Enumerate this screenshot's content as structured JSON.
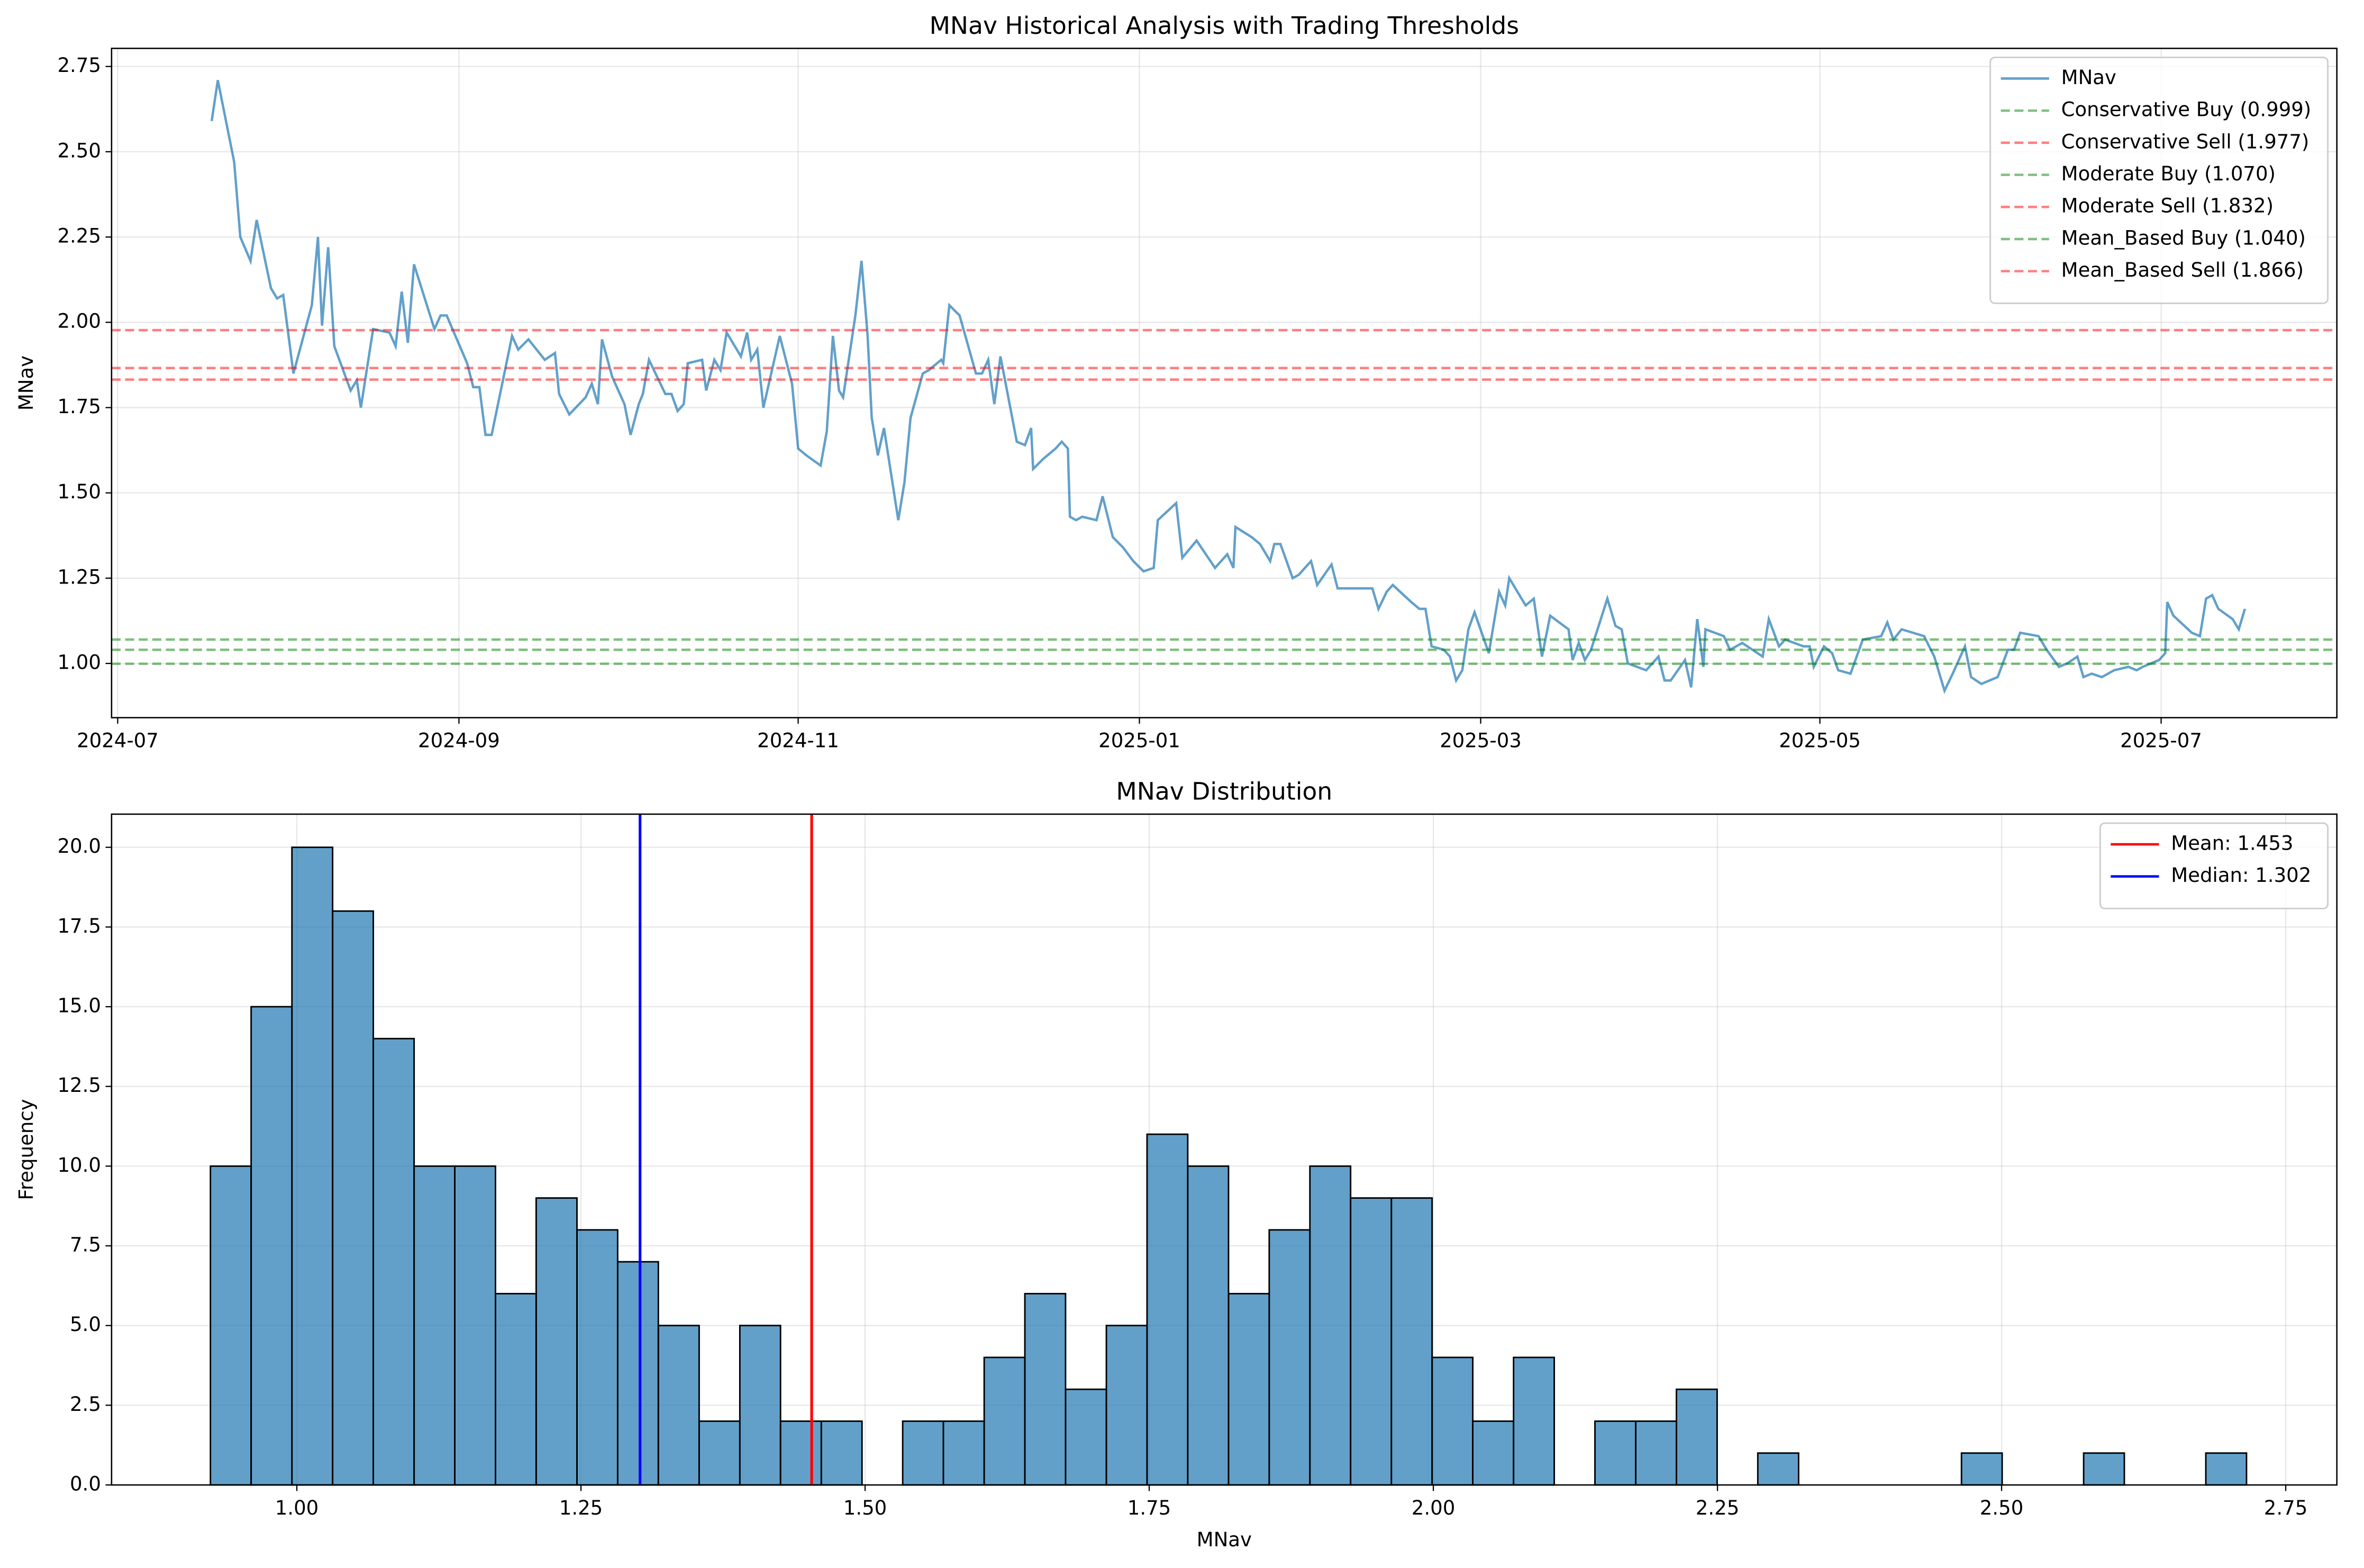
{
  "chart_data": [
    {
      "type": "line",
      "title": "MNav Historical Analysis with Trading Thresholds",
      "ylabel": "MNav",
      "x": [
        2024.546,
        2024.549,
        2024.557,
        2024.56,
        2024.565,
        2024.568,
        2024.575,
        2024.578,
        2024.581,
        2024.586,
        2024.595,
        2024.598,
        2024.6,
        2024.603,
        2024.606,
        2024.614,
        2024.617,
        2024.619,
        2024.625,
        2024.633,
        2024.636,
        2024.639,
        2024.642,
        2024.645,
        2024.655,
        2024.658,
        2024.661,
        2024.671,
        2024.674,
        2024.677,
        2024.68,
        2024.683,
        2024.693,
        2024.696,
        2024.701,
        2024.709,
        2024.714,
        2024.716,
        2024.721,
        2024.729,
        2024.732,
        2024.735,
        2024.737,
        2024.742,
        2024.748,
        2024.751,
        2024.755,
        2024.757,
        2024.76,
        2024.764,
        2024.768,
        2024.771,
        2024.774,
        2024.777,
        2024.779,
        2024.786,
        2024.788,
        2024.792,
        2024.795,
        2024.798,
        2024.805,
        2024.808,
        2024.81,
        2024.813,
        2024.816,
        2024.824,
        2024.827,
        2024.83,
        2024.833,
        2024.837,
        2024.844,
        2024.847,
        2024.85,
        2024.853,
        2024.855,
        2024.861,
        2024.864,
        2024.867,
        2024.869,
        2024.872,
        2024.875,
        2024.882,
        2024.885,
        2024.888,
        2024.894,
        2024.897,
        2024.903,
        2024.904,
        2024.907,
        2024.912,
        2024.92,
        2024.923,
        2024.926,
        2024.929,
        2024.932,
        2024.94,
        2024.944,
        2024.947,
        2024.948,
        2024.953,
        2024.959,
        2024.962,
        2024.965,
        2024.966,
        2024.969,
        2024.972,
        2024.979,
        2024.982,
        2024.987,
        2024.992,
        2024.997,
        2025.002,
        2025.007,
        2025.009,
        2025.018,
        2025.021,
        2025.028,
        2025.037,
        2025.04,
        2025.043,
        2025.046,
        2025.047,
        2025.055,
        2025.059,
        2025.064,
        2025.066,
        2025.069,
        2025.075,
        2025.078,
        2025.084,
        2025.087,
        2025.094,
        2025.097,
        2025.103,
        2025.106,
        2025.114,
        2025.117,
        2025.121,
        2025.124,
        2025.133,
        2025.137,
        2025.14,
        2025.143,
        2025.149,
        2025.152,
        2025.155,
        2025.158,
        2025.161,
        2025.164,
        2025.171,
        2025.176,
        2025.179,
        2025.181,
        2025.189,
        2025.193,
        2025.197,
        2025.201,
        2025.21,
        2025.212,
        2025.215,
        2025.218,
        2025.221,
        2025.229,
        2025.233,
        2025.236,
        2025.239,
        2025.248,
        2025.254,
        2025.257,
        2025.26,
        2025.267,
        2025.27,
        2025.273,
        2025.276,
        2025.277,
        2025.286,
        2025.289,
        2025.295,
        2025.305,
        2025.308,
        2025.313,
        2025.316,
        2025.325,
        2025.328,
        2025.33,
        2025.335,
        2025.339,
        2025.342,
        2025.348,
        2025.354,
        2025.363,
        2025.366,
        2025.369,
        2025.373,
        2025.384,
        2025.389,
        2025.394,
        2025.398,
        2025.404,
        2025.407,
        2025.412,
        2025.42,
        2025.425,
        2025.428,
        2025.431,
        2025.44,
        2025.444,
        2025.45,
        2025.454,
        2025.459,
        2025.462,
        2025.466,
        2025.471,
        2025.477,
        2025.484,
        2025.488,
        2025.491,
        2025.499,
        2025.502,
        2025.503,
        2025.506,
        2025.515,
        2025.519,
        2025.522,
        2025.525,
        2025.528,
        2025.535,
        2025.538,
        2025.541
      ],
      "series": [
        {
          "name": "MNav",
          "color": "#1f77b4",
          "values": [
            2.59,
            2.71,
            2.47,
            2.25,
            2.18,
            2.3,
            2.1,
            2.07,
            2.08,
            1.85,
            2.05,
            2.25,
            1.99,
            2.22,
            1.93,
            1.8,
            1.83,
            1.75,
            1.98,
            1.97,
            1.93,
            2.09,
            1.94,
            2.17,
            1.98,
            2.02,
            2.02,
            1.88,
            1.81,
            1.81,
            1.67,
            1.67,
            1.96,
            1.92,
            1.95,
            1.89,
            1.91,
            1.79,
            1.73,
            1.78,
            1.82,
            1.76,
            1.95,
            1.84,
            1.76,
            1.67,
            1.76,
            1.79,
            1.89,
            1.84,
            1.79,
            1.79,
            1.74,
            1.76,
            1.88,
            1.89,
            1.8,
            1.89,
            1.86,
            1.97,
            1.9,
            1.97,
            1.89,
            1.92,
            1.75,
            1.96,
            1.89,
            1.82,
            1.63,
            1.61,
            1.58,
            1.68,
            1.96,
            1.8,
            1.78,
            2.02,
            2.18,
            1.96,
            1.72,
            1.61,
            1.69,
            1.42,
            1.53,
            1.72,
            1.85,
            1.86,
            1.89,
            1.88,
            2.05,
            2.02,
            1.85,
            1.85,
            1.89,
            1.76,
            1.9,
            1.65,
            1.64,
            1.69,
            1.57,
            1.6,
            1.63,
            1.65,
            1.63,
            1.43,
            1.42,
            1.43,
            1.42,
            1.49,
            1.37,
            1.34,
            1.3,
            1.27,
            1.28,
            1.42,
            1.47,
            1.31,
            1.36,
            1.28,
            1.3,
            1.32,
            1.28,
            1.4,
            1.37,
            1.35,
            1.3,
            1.35,
            1.35,
            1.25,
            1.26,
            1.3,
            1.23,
            1.29,
            1.22,
            1.22,
            1.22,
            1.22,
            1.16,
            1.21,
            1.23,
            1.18,
            1.16,
            1.16,
            1.05,
            1.04,
            1.02,
            0.95,
            0.98,
            1.1,
            1.15,
            1.03,
            1.21,
            1.17,
            1.25,
            1.17,
            1.19,
            1.02,
            1.14,
            1.1,
            1.01,
            1.06,
            1.01,
            1.04,
            1.19,
            1.11,
            1.1,
            1.0,
            0.98,
            1.02,
            0.95,
            0.95,
            1.01,
            0.93,
            1.13,
            0.99,
            1.1,
            1.08,
            1.04,
            1.06,
            1.02,
            1.13,
            1.05,
            1.07,
            1.05,
            1.05,
            0.99,
            1.05,
            1.03,
            0.98,
            0.97,
            1.07,
            1.08,
            1.12,
            1.07,
            1.1,
            1.08,
            1.02,
            0.92,
            0.97,
            1.05,
            0.96,
            0.94,
            0.96,
            1.04,
            1.04,
            1.09,
            1.08,
            1.04,
            0.99,
            1.0,
            1.02,
            0.96,
            0.97,
            0.96,
            0.98,
            0.99,
            0.98,
            0.99,
            1.01,
            1.03,
            1.18,
            1.14,
            1.09,
            1.08,
            1.19,
            1.2,
            1.16,
            1.13,
            1.1,
            1.16
          ]
        }
      ],
      "hlines": [
        {
          "name": "Conservative Buy (0.999)",
          "value": 0.999,
          "color": "#008000"
        },
        {
          "name": "Conservative Sell (1.977)",
          "value": 1.977,
          "color": "#ff0000"
        },
        {
          "name": "Moderate Buy (1.070)",
          "value": 1.07,
          "color": "#008000"
        },
        {
          "name": "Moderate Sell (1.832)",
          "value": 1.832,
          "color": "#ff0000"
        },
        {
          "name": "Mean_Based Buy (1.040)",
          "value": 1.04,
          "color": "#008000"
        },
        {
          "name": "Mean_Based Sell (1.866)",
          "value": 1.866,
          "color": "#ff0000"
        }
      ],
      "xlim": [
        2024.497,
        2025.586
      ],
      "xticks": [
        {
          "value": 2024.5,
          "label": "2024-07"
        },
        {
          "value": 2024.667,
          "label": "2024-09"
        },
        {
          "value": 2024.833,
          "label": "2024-11"
        },
        {
          "value": 2025.0,
          "label": "2025-01"
        },
        {
          "value": 2025.167,
          "label": "2025-03"
        },
        {
          "value": 2025.333,
          "label": "2025-05"
        },
        {
          "value": 2025.5,
          "label": "2025-07"
        }
      ],
      "ylim": [
        0.841,
        2.803
      ],
      "yticks": [
        {
          "value": 1,
          "label": "1.00"
        },
        1.25,
        {
          "value": 1.5,
          "label": "1.50"
        },
        1.75,
        {
          "value": 2,
          "label": "2.00"
        },
        2.25,
        {
          "value": 2.5,
          "label": "2.50"
        },
        2.75
      ],
      "grid": true,
      "legend": "upper right"
    },
    {
      "type": "histogram",
      "title": "MNav Distribution",
      "xlabel": "MNav",
      "ylabel": "Frequency",
      "bins": [
        0.924,
        0.9598,
        0.9957,
        1.0315,
        1.0673,
        1.1032,
        1.139,
        1.1748,
        1.2106,
        1.2465,
        1.2823,
        1.3181,
        1.354,
        1.3898,
        1.4256,
        1.4615,
        1.4973,
        1.5331,
        1.5689,
        1.6048,
        1.6406,
        1.6764,
        1.7123,
        1.7481,
        1.7839,
        1.8198,
        1.8556,
        1.8914,
        1.9272,
        1.9631,
        1.9989,
        2.0347,
        2.0706,
        2.1064,
        2.1422,
        2.1781,
        2.2139,
        2.2497,
        2.2855,
        2.3214,
        2.3572,
        2.393,
        2.4289,
        2.4647,
        2.5005,
        2.5364,
        2.5722,
        2.608,
        2.6438,
        2.6797,
        2.7155
      ],
      "counts": [
        10,
        15,
        20,
        18,
        14,
        10,
        10,
        6,
        9,
        8,
        7,
        5,
        2,
        5,
        2,
        2,
        0,
        2,
        2,
        4,
        6,
        3,
        5,
        11,
        10,
        6,
        8,
        10,
        9,
        9,
        4,
        2,
        4,
        0,
        2,
        2,
        3,
        0,
        1,
        0,
        0,
        0,
        0,
        1,
        0,
        0,
        1,
        0,
        0,
        1
      ],
      "color": "#1f77b4",
      "edgecolor": "#000000",
      "vlines": [
        {
          "name": "Mean: 1.453",
          "value": 1.453,
          "color": "#ff0000"
        },
        {
          "name": "Median: 1.302",
          "value": 1.302,
          "color": "#0000ff"
        }
      ],
      "xlim": [
        0.837,
        2.795
      ],
      "xticks": [
        {
          "value": 1,
          "label": "1.00"
        },
        1.25,
        {
          "value": 1.5,
          "label": "1.50"
        },
        1.75,
        {
          "value": 2,
          "label": "2.00"
        },
        2.25,
        {
          "value": 2.5,
          "label": "2.50"
        },
        2.75
      ],
      "ylim": [
        0,
        21.04
      ],
      "yticks": [
        {
          "value": 0,
          "label": "0.0"
        },
        2.5,
        {
          "value": 5,
          "label": "5.0"
        },
        7.5,
        {
          "value": 10,
          "label": "10.0"
        },
        12.5,
        {
          "value": 15,
          "label": "15.0"
        },
        17.5,
        {
          "value": 20,
          "label": "20.0"
        }
      ],
      "grid": true,
      "legend": "upper right"
    }
  ]
}
